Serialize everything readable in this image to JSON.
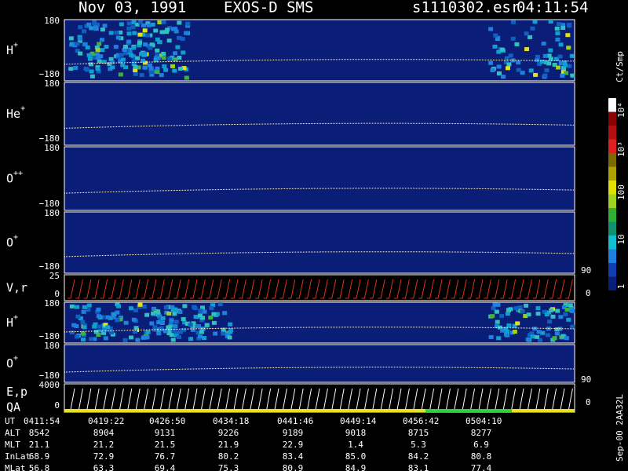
{
  "header": {
    "date": "Nov 03, 1991",
    "instrument": "EXOS-D SMS",
    "file": "s1110302.esr",
    "time": "04:11:54"
  },
  "panels": [
    {
      "label": "H",
      "sup": "+",
      "top": "180",
      "bottom": "−180"
    },
    {
      "label": "He",
      "sup": "+",
      "top": "180",
      "bottom": "−180"
    },
    {
      "label": "O",
      "sup": "++",
      "top": "180",
      "bottom": "−180"
    },
    {
      "label": "O",
      "sup": "+",
      "top": "180",
      "bottom": "−180",
      "right_top": "90",
      "right_bottom": "0"
    },
    {
      "label": "V,r",
      "top": "25",
      "bottom": "0"
    },
    {
      "label": "H",
      "sup": "+",
      "top": "180",
      "bottom": "−180"
    },
    {
      "label": "O",
      "sup": "+",
      "top": "180",
      "bottom": "−180",
      "right_top": "90",
      "right_bottom": "0"
    },
    {
      "label": "E,p",
      "label2": "QA",
      "top": "4000",
      "bottom": "0"
    }
  ],
  "colorbar": {
    "title": "Ct/Smp",
    "ticks": [
      "10⁴",
      "10³",
      "100",
      "10",
      "1"
    ]
  },
  "footer": "Sep-00  2AA32L",
  "table": {
    "labels": [
      "UT",
      "ALT",
      "MLT",
      "InLat",
      "MLat"
    ],
    "rows": [
      [
        "0411:54",
        "0419:22",
        "0426:50",
        "0434:18",
        "0441:46",
        "0449:14",
        "0456:42",
        "0504:10"
      ],
      [
        "8542",
        "8904",
        "9131",
        "9226",
        "9189",
        "9018",
        "8715",
        "8277"
      ],
      [
        "21.1",
        "21.2",
        "21.5",
        "21.9",
        "22.9",
        "1.4",
        "5.3",
        "6.9"
      ],
      [
        "68.9",
        "72.9",
        "76.7",
        "80.2",
        "83.4",
        "85.0",
        "84.2",
        "80.8"
      ],
      [
        "56.8",
        "63.3",
        "69.4",
        "75.3",
        "80.9",
        "84.9",
        "83.1",
        "77.4"
      ]
    ]
  }
}
